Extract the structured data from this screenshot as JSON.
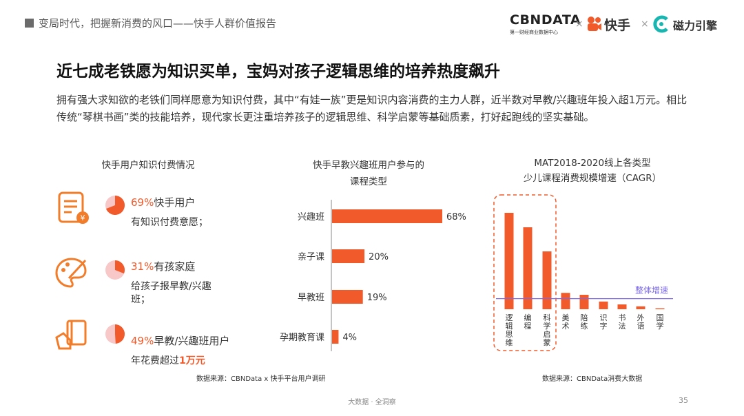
{
  "header": {
    "title": "变局时代，把握新消费的风口——快手人群价值报告",
    "logo_cbn": "CBNDATA",
    "logo_cbn_sub": "第一财经商业数据中心",
    "times": "×",
    "logo_kuaishou": "快手",
    "logo_cili": "磁力引擎"
  },
  "main": {
    "title": "近七成老铁愿为知识买单，宝妈对孩子逻辑思维的培养热度飙升",
    "intro": "拥有强大求知欲的老铁们同样愿意为知识付费，其中“有娃一族”更是知识内容消费的主力人群，近半数对早教/兴趣班年投入超1万元。相比传统“琴棋书画”类的技能培养，现代家长更注重培养孩子的逻辑思维、科学启蒙等基础质素，打好起跑线的坚实基础。"
  },
  "left_panel": {
    "title": "快手用户知识付费情况",
    "stats": [
      {
        "pct": "69%",
        "pct_value": 0.69,
        "label": "快手用户",
        "desc": "有知识付费意愿；",
        "icon": "document-yuan-icon"
      },
      {
        "pct": "31%",
        "pct_value": 0.31,
        "label": "有孩家庭",
        "desc_1": "给孩子报早教/兴趣",
        "desc_2": "班；",
        "icon": "palette-brush-icon"
      },
      {
        "pct": "49%",
        "pct_value": 0.49,
        "label": "早教/兴趣班用户",
        "desc_pre": "年花费超过",
        "desc_hl": "1万元",
        "icon": "hand-book-icon"
      }
    ],
    "source": "数据来源：CBNData x 快手平台用户调研"
  },
  "chart_data": [
    {
      "type": "bar",
      "orientation": "horizontal",
      "title": "快手早教兴趣班用户参与的课程类型",
      "title_line1": "快手早教兴趣班用户参与的",
      "title_line2": "课程类型",
      "categories": [
        "兴趣班",
        "亲子课",
        "早教班",
        "孕期教育课"
      ],
      "values": [
        68,
        20,
        19,
        4
      ],
      "value_labels": [
        "68%",
        "20%",
        "19%",
        "4%"
      ],
      "unit": "%",
      "xlim": [
        0,
        70
      ],
      "color": "#f15a2b"
    },
    {
      "type": "bar",
      "title": "MAT2018-2020线上各类型少儿课程消费规模增速（CAGR）",
      "title_line1": "MAT2018-2020线上各类型",
      "title_line2": "少儿课程消费规模增速（CAGR）",
      "categories": [
        "逻辑思维",
        "编程",
        "科学启蒙",
        "美术",
        "陪练",
        "识字",
        "书法",
        "外语",
        "国学"
      ],
      "values": [
        100,
        85,
        60,
        17,
        15,
        8,
        5,
        3,
        1
      ],
      "reference_line": {
        "label": "整体增速",
        "value": 11
      },
      "highlighted": [
        "逻辑思维",
        "编程",
        "科学启蒙"
      ],
      "ylim": [
        0,
        100
      ],
      "color": "#f15a2b",
      "reference_color": "#7b68ee",
      "source": "数据来源：CBNData消费大数据"
    }
  ],
  "footer": {
    "text": "大数据 · 全洞察",
    "page": "35"
  },
  "colors": {
    "accent": "#f15a2b",
    "pie_light": "#f8c8c8",
    "reference": "#7b68ee"
  }
}
